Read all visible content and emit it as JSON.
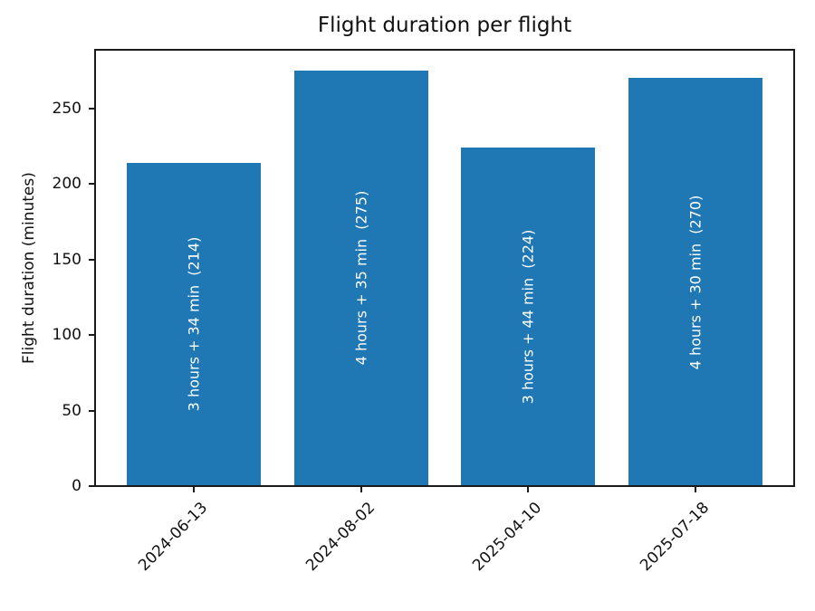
{
  "chart_data": {
    "type": "bar",
    "title": "Flight duration per flight",
    "xlabel": "",
    "ylabel": "Flight duration (minutes)",
    "categories": [
      "2024-06-13",
      "2024-08-02",
      "2025-04-10",
      "2025-07-18"
    ],
    "values": [
      214,
      275,
      224,
      270
    ],
    "bar_labels": [
      "3 hours + 34 min  (214)",
      "4 hours + 35 min  (275)",
      "3 hours + 44 min  (224)",
      "4 hours + 30 min  (270)"
    ],
    "yticks": [
      0,
      50,
      100,
      150,
      200,
      250
    ],
    "ylim": [
      0,
      288.75
    ],
    "xlim": [
      -0.59,
      3.59
    ],
    "bar_width": 0.8,
    "bar_color": "#1f77b4",
    "bar_label_color": "#ffffff",
    "axis_color": "#1a1a1a",
    "grid": false,
    "legend_position": "none",
    "x_tick_rotation_deg": 45
  }
}
